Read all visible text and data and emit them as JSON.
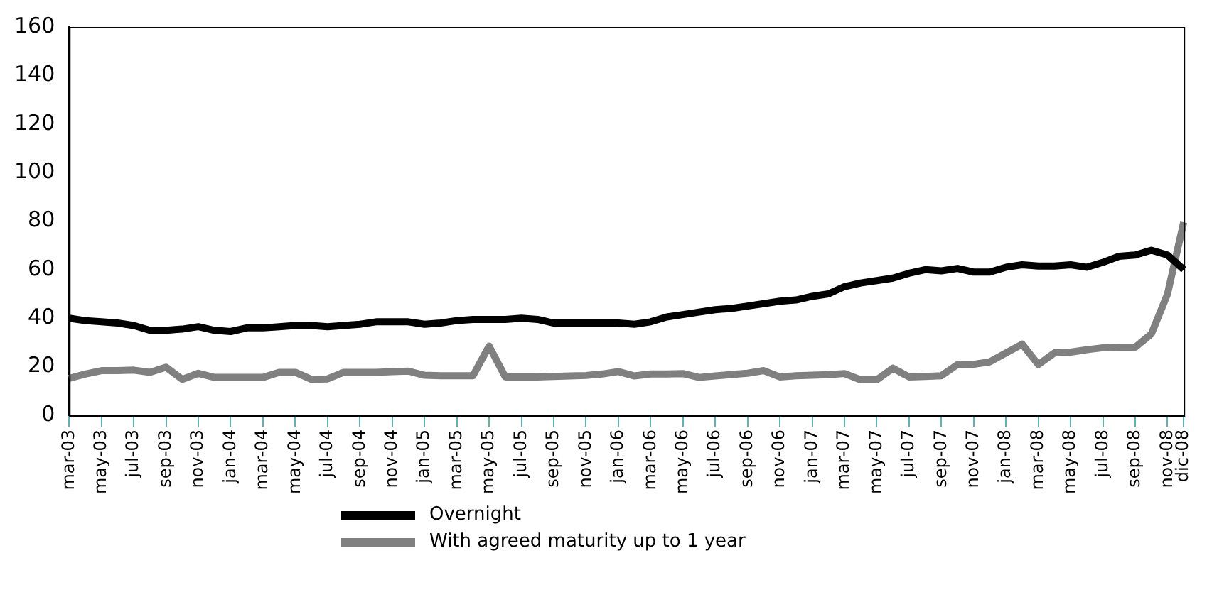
{
  "chart_data": {
    "type": "line",
    "categories": [
      "mar-03",
      null,
      "may-03",
      null,
      "jul-03",
      null,
      "sep-03",
      null,
      "nov-03",
      null,
      "jan-04",
      null,
      "mar-04",
      null,
      "may-04",
      null,
      "jul-04",
      null,
      "sep-04",
      null,
      "nov-04",
      null,
      "jan-05",
      null,
      "mar-05",
      null,
      "may-05",
      null,
      "jul-05",
      null,
      "sep-05",
      null,
      "nov-05",
      null,
      "jan-06",
      null,
      "mar-06",
      null,
      "may-06",
      null,
      "jul-06",
      null,
      "sep-06",
      null,
      "nov-06",
      null,
      "jan-07",
      null,
      "mar-07",
      null,
      "may-07",
      null,
      "jul-07",
      null,
      "sep-07",
      null,
      "nov-07",
      null,
      "jan-08",
      null,
      "mar-08",
      null,
      "may-08",
      null,
      "jul-08",
      null,
      "sep-08",
      null,
      "nov-08",
      "dic-08"
    ],
    "series": [
      {
        "name": "Overnight",
        "color": "#000000",
        "values": [
          40,
          39,
          38.5,
          38,
          37,
          35,
          35,
          35.5,
          36.5,
          35,
          34.5,
          36,
          36,
          36.5,
          37,
          37,
          36.5,
          37,
          37.5,
          38.5,
          38.5,
          38.5,
          37.5,
          38,
          39,
          39.5,
          39.5,
          39.5,
          40,
          39.5,
          38,
          38,
          38,
          38,
          38,
          37.5,
          38.5,
          40.5,
          41.5,
          42.5,
          43.5,
          44,
          45,
          46,
          47,
          47.5,
          49,
          50,
          53,
          54.5,
          55.5,
          56.5,
          58.5,
          60,
          59.5,
          60.5,
          59,
          59,
          61,
          62,
          61.5,
          61.5,
          62,
          61,
          63,
          65.5,
          66,
          68,
          66,
          60
        ]
      },
      {
        "name": "With agreed maturity up to 1 year",
        "color": "#808080",
        "values": [
          15.2,
          17,
          18.4,
          18.4,
          18.6,
          17.7,
          19.8,
          14.8,
          17.3,
          15.6,
          15.6,
          15.6,
          15.6,
          17.7,
          17.7,
          14.8,
          15,
          17.7,
          17.7,
          17.7,
          18,
          18.2,
          16.5,
          16.3,
          16.3,
          16.3,
          28.5,
          15.8,
          15.8,
          15.8,
          16,
          16.2,
          16.4,
          17,
          18,
          16.2,
          17,
          17,
          17.2,
          15.6,
          16.2,
          16.8,
          17.3,
          18.4,
          15.8,
          16.3,
          16.5,
          16.7,
          17.2,
          14.6,
          14.6,
          19.4,
          15.8,
          16,
          16.3,
          20.9,
          21,
          22,
          25.7,
          29.3,
          20.9,
          25.7,
          26,
          27,
          27.8,
          28,
          28,
          33.5,
          50,
          79.5
        ]
      }
    ],
    "ylim": [
      0,
      160
    ],
    "yticks": [
      0,
      20,
      40,
      60,
      80,
      100,
      120,
      140,
      160
    ],
    "grid": false,
    "legend": "bottom",
    "marker": "none",
    "line_style": "solid"
  }
}
